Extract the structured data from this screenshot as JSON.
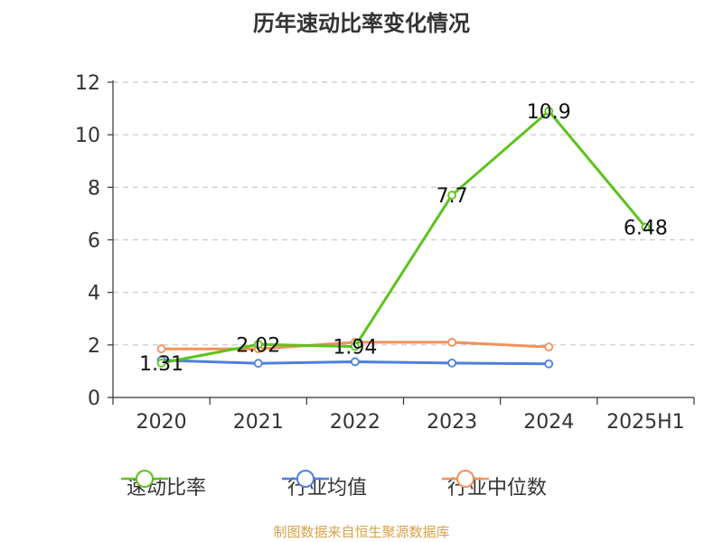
{
  "title": "历年速动比率变化情况",
  "source": "制图数据来自恒生聚源数据库",
  "chart_data": {
    "type": "line",
    "title": "历年速动比率变化情况",
    "categories": [
      "2020",
      "2021",
      "2022",
      "2023",
      "2024",
      "2025H1"
    ],
    "ylim": [
      0,
      12
    ],
    "yticks": [
      0,
      2,
      4,
      6,
      8,
      10,
      12
    ],
    "grid": true,
    "legend_position": "bottom",
    "series": [
      {
        "name": "速动比率",
        "color": "#5cc31d",
        "values": [
          1.31,
          2.02,
          1.94,
          7.7,
          10.9,
          6.48
        ],
        "show_labels": true
      },
      {
        "name": "行业均值",
        "color": "#4f7fde",
        "values": [
          1.42,
          1.3,
          1.36,
          1.31,
          1.28,
          null
        ],
        "show_labels": false
      },
      {
        "name": "行业中位数",
        "color": "#f58f5a",
        "values": [
          1.85,
          1.85,
          2.1,
          2.1,
          1.92,
          null
        ],
        "show_labels": false
      }
    ]
  }
}
